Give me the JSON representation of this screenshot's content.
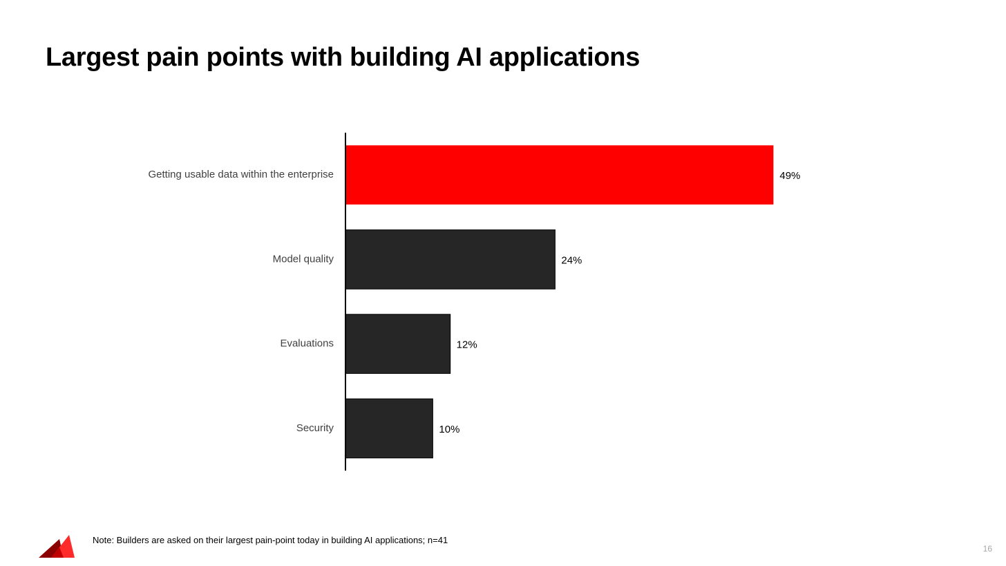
{
  "slide": {
    "title": "Largest pain points with building AI applications",
    "note": "Note: Builders are asked on their largest pain-point today in building AI applications; n=41",
    "page_number": "16",
    "logo_icon": "red-triangle-logo-icon"
  },
  "colors": {
    "highlight": "#ff0000",
    "bar": "#262626",
    "axis": "#000000"
  },
  "chart_data": {
    "type": "bar",
    "orientation": "horizontal",
    "title": "",
    "xlabel": "",
    "ylabel": "",
    "categories": [
      "Getting usable data within the enterprise",
      "Model quality",
      "Evaluations",
      "Security"
    ],
    "values": [
      49,
      24,
      12,
      10
    ],
    "value_labels": [
      "49%",
      "24%",
      "12%",
      "10%"
    ],
    "highlight_index": 0,
    "xlim": [
      0,
      50
    ],
    "grid": false,
    "legend": "none"
  }
}
